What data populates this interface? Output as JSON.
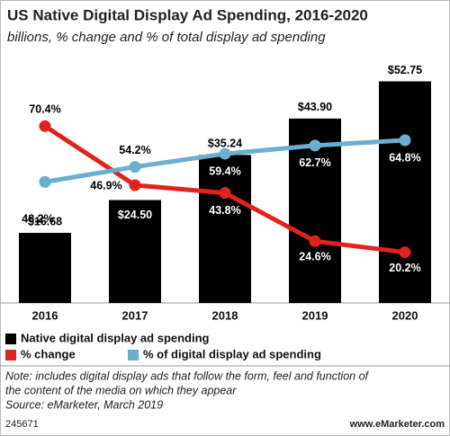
{
  "chart_data": {
    "type": "bar",
    "title": "US Native Digital Display Ad Spending, 2016-2020",
    "subtitle": "billions, % change and % of total display ad spending",
    "categories": [
      "2016",
      "2017",
      "2018",
      "2019",
      "2020"
    ],
    "ylim": [
      0,
      55
    ],
    "y2lim": [
      0,
      92
    ],
    "series": [
      {
        "name": "Native digital display ad spending",
        "type": "bar",
        "color": "#000000",
        "values": [
          16.68,
          24.5,
          35.24,
          43.9,
          52.75
        ],
        "value_labels": [
          "$16.68",
          "$24.50",
          "$35.24",
          "$43.90",
          "$52.75"
        ]
      },
      {
        "name": "% change",
        "type": "line",
        "axis": "y2",
        "color": "#e0231b",
        "values": [
          70.4,
          46.9,
          43.8,
          24.6,
          20.2
        ],
        "value_labels": [
          "70.4%",
          "46.9%",
          "43.8%",
          "24.6%",
          "20.2%"
        ]
      },
      {
        "name": "% of digital display ad spending",
        "type": "line",
        "axis": "y2",
        "color": "#6aaed0",
        "values": [
          48.2,
          54.2,
          59.4,
          62.7,
          64.8
        ],
        "value_labels": [
          "48.2%",
          "54.2%",
          "59.4%",
          "62.7%",
          "64.8%"
        ]
      }
    ],
    "note": [
      "Note: includes digital display ads that follow the form, feel and function of",
      "the content of the media on which they appear"
    ],
    "source": "Source: eMarketer, March 2019",
    "chart_id": "245671",
    "website": "www.eMarketer.com"
  }
}
